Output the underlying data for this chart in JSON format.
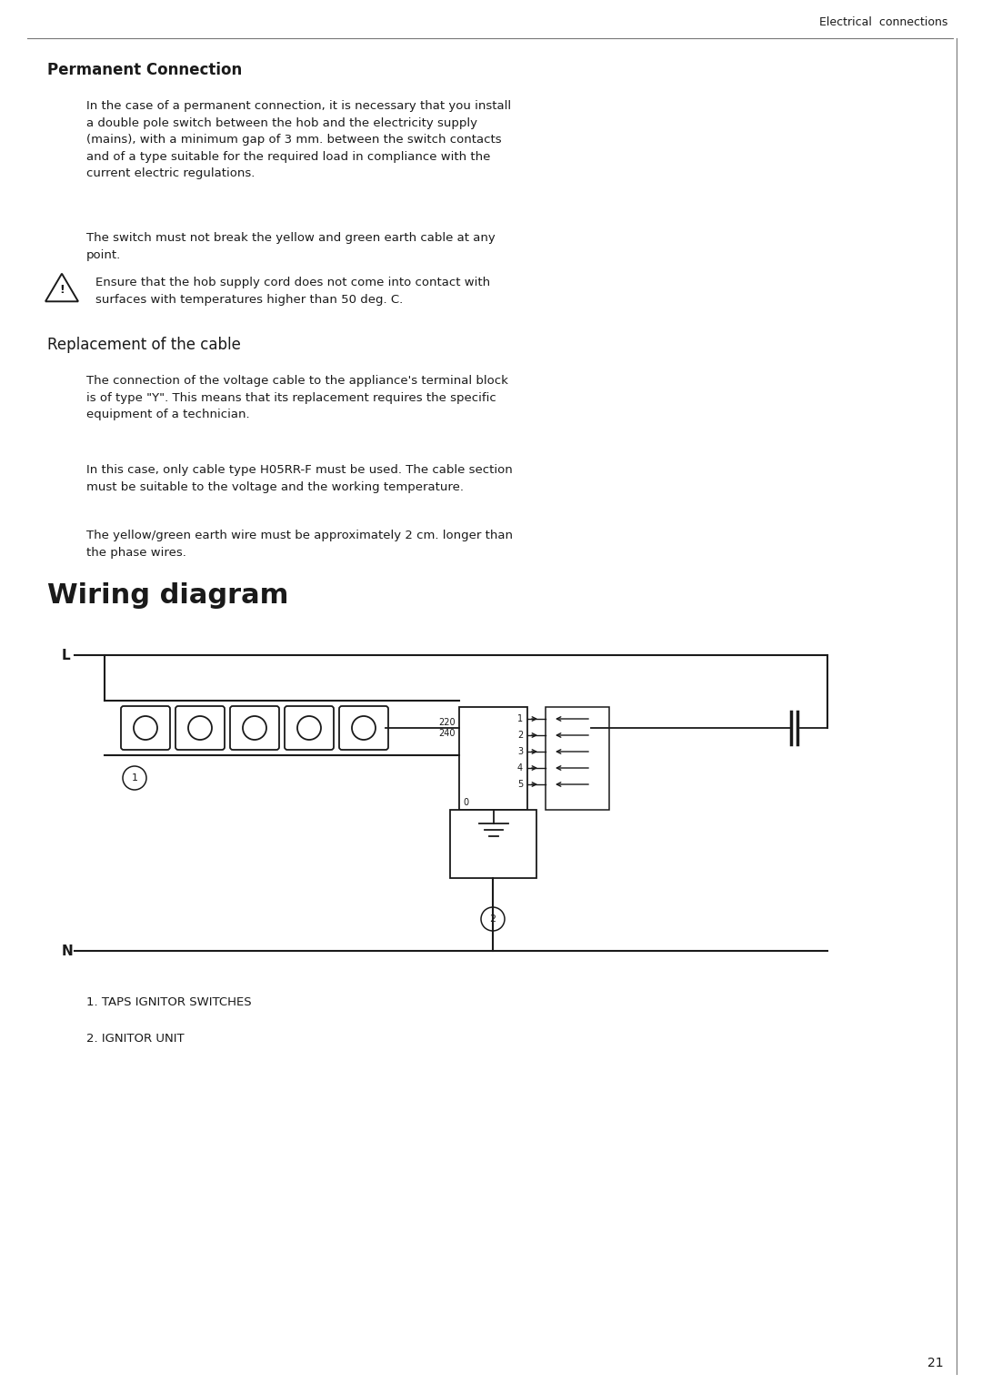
{
  "page_bg": "#ffffff",
  "header_text": "Electrical  connections",
  "header_fontsize": 9,
  "section1_title": "Permanent Connection",
  "section1_title_fontsize": 12,
  "para1": "In the case of a permanent connection, it is necessary that you install\na double pole switch between the hob and the electricity supply\n(mains), with a minimum gap of 3 mm. between the switch contacts\nand of a type suitable for the required load in compliance with the\ncurrent electric regulations.",
  "para2": "The switch must not break the yellow and green earth cable at any\npoint.",
  "warning_text": "Ensure that the hob supply cord does not come into contact with\nsurfaces with temperatures higher than 50 deg. C.",
  "section2_title": "Replacement of the cable",
  "section2_title_fontsize": 12,
  "para3": "The connection of the voltage cable to the appliance's terminal block\nis of type \"Y\". This means that its replacement requires the specific\nequipment of a technician.",
  "para4": "In this case, only cable type H05RR-F must be used. The cable section\nmust be suitable to the voltage and the working temperature.",
  "para5": "The yellow/green earth wire must be approximately 2 cm. longer than\nthe phase wires.",
  "section3_title": "Wiring diagram",
  "section3_title_fontsize": 22,
  "legend1": "1. TAPS IGNITOR SWITCHES",
  "legend2": "2. IGNITOR UNIT",
  "page_number": "21",
  "body_fontsize": 9.5,
  "text_color": "#1a1a1a",
  "line_color": "#1a1a1a"
}
